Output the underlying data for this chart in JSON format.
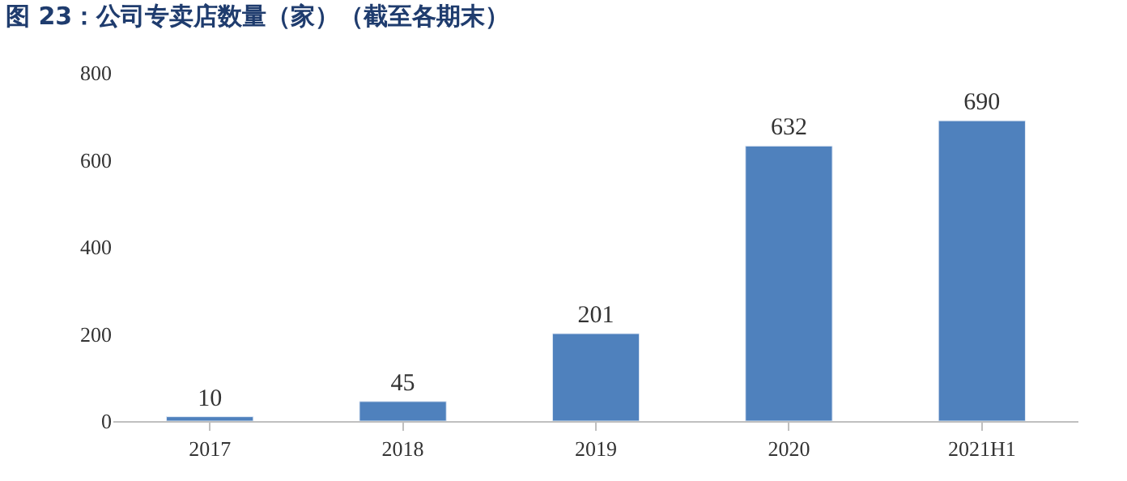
{
  "chart_data": {
    "type": "bar",
    "title": "图 23：公司专卖店数量（家）（截至各期末）",
    "categories": [
      "2017",
      "2018",
      "2019",
      "2020",
      "2021H1"
    ],
    "values": [
      10,
      45,
      201,
      632,
      690
    ],
    "color": "#4f81bd",
    "ylim": [
      0,
      800
    ],
    "yticks": [
      0,
      200,
      400,
      600,
      800
    ],
    "data_labels": true
  }
}
